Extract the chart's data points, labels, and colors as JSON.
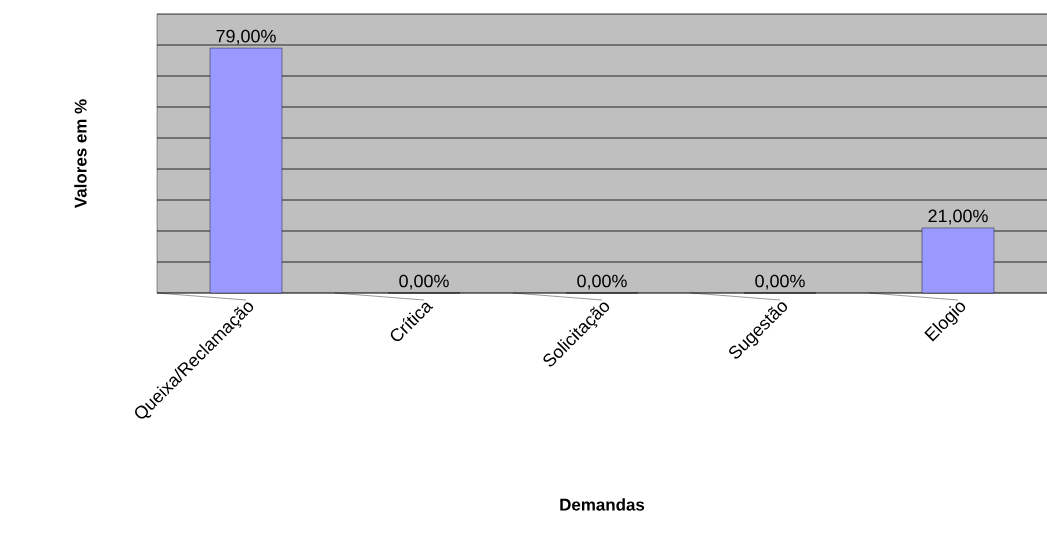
{
  "chart_data": {
    "type": "bar",
    "xlabel": "Demandas",
    "ylabel": "Valores em %",
    "categories": [
      "Queixa/Reclamação",
      "Crítica",
      "Solicitação",
      "Sugestão",
      "Elogio"
    ],
    "values": [
      79,
      0,
      0,
      0,
      21
    ],
    "value_labels": [
      "79,00%",
      "0,00%",
      "0,00%",
      "0,00%",
      "21,00%"
    ],
    "color": "#9999ff",
    "ylim": [
      0,
      90
    ],
    "yticks": [
      {
        "value": 0,
        "label": null
      },
      {
        "value": 10,
        "label": null
      },
      {
        "value": 20,
        "label": null
      },
      {
        "value": 30,
        "label": null
      },
      {
        "value": 40,
        "label": null
      },
      {
        "value": 50,
        "label": null
      },
      {
        "value": 60,
        "label": null
      },
      {
        "value": 70,
        "label": null
      },
      {
        "value": 80,
        "label": null
      },
      {
        "value": 90,
        "label": null
      }
    ],
    "grid": "y"
  }
}
